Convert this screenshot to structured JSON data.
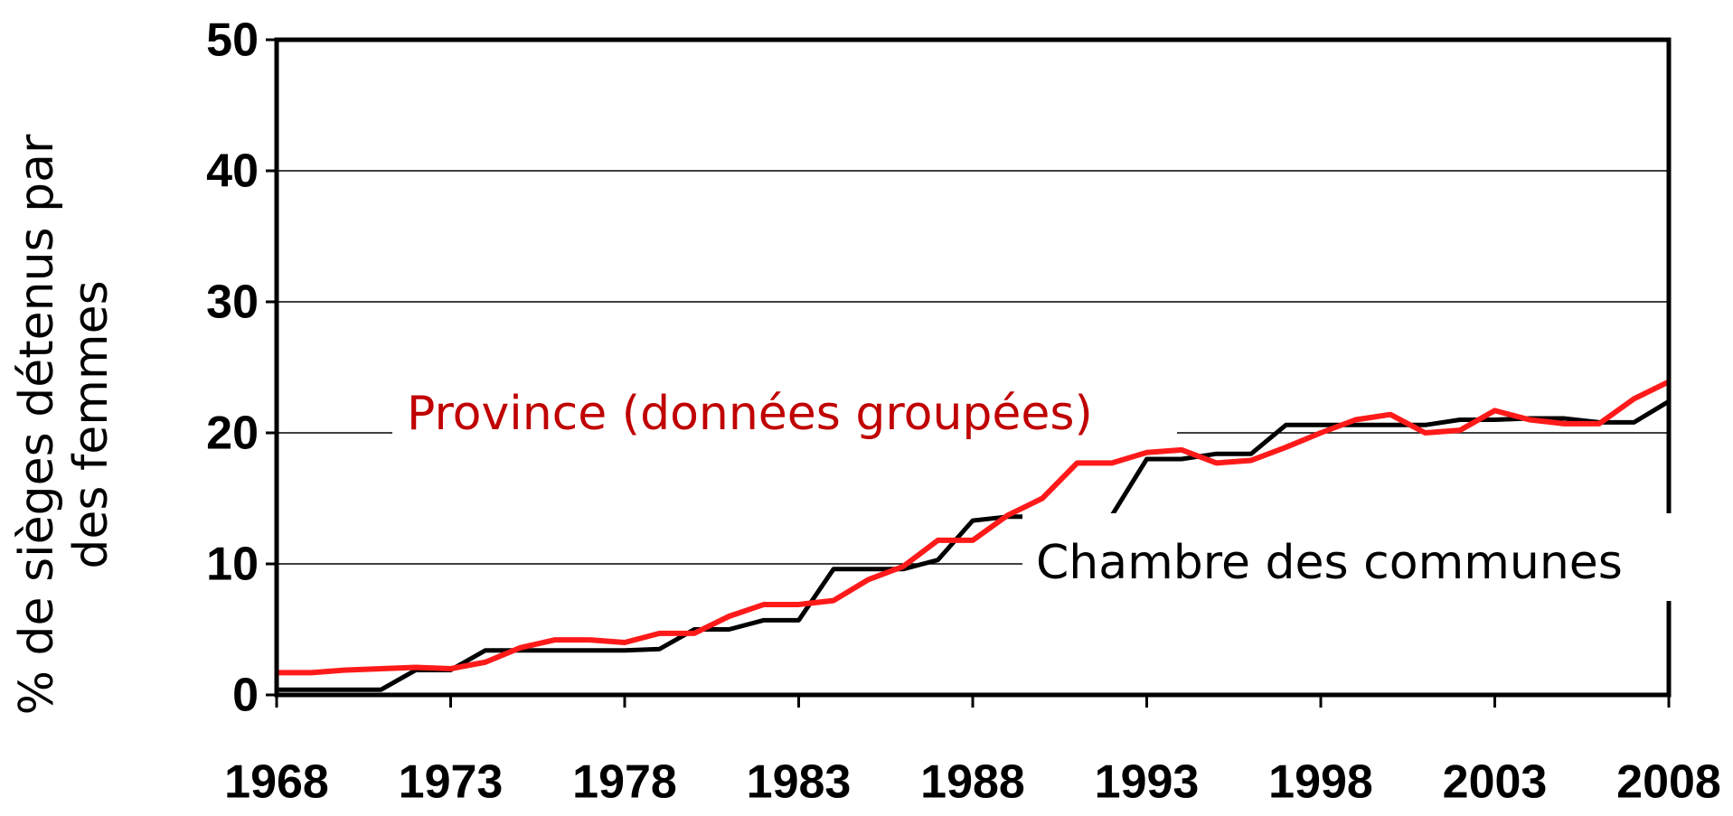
{
  "chart_data": {
    "type": "line",
    "y_label": [
      "% de sièges détenus par",
      "des femmes"
    ],
    "x": [
      1968,
      1969,
      1970,
      1971,
      1972,
      1973,
      1974,
      1975,
      1976,
      1977,
      1978,
      1979,
      1980,
      1981,
      1982,
      1983,
      1984,
      1985,
      1986,
      1987,
      1988,
      1989,
      1990,
      1991,
      1992,
      1993,
      1994,
      1995,
      1996,
      1997,
      1998,
      1999,
      2000,
      2001,
      2002,
      2003,
      2004,
      2005,
      2006,
      2007,
      2008
    ],
    "series": [
      {
        "name": "Chambre des communes",
        "color": "#000000",
        "values": [
          0.4,
          0.4,
          0.4,
          0.4,
          1.9,
          1.9,
          3.4,
          3.4,
          3.4,
          3.4,
          3.4,
          3.5,
          5.0,
          5.0,
          5.7,
          5.7,
          9.6,
          9.6,
          9.6,
          10.3,
          13.3,
          13.6,
          13.6,
          13.6,
          13.7,
          18.0,
          18.0,
          18.4,
          18.4,
          20.6,
          20.6,
          20.6,
          20.6,
          20.6,
          21.0,
          21.0,
          21.1,
          21.1,
          20.8,
          20.8,
          22.4
        ]
      },
      {
        "name": "Province (données groupées)",
        "color": "#ff1a1a",
        "values": [
          1.7,
          1.7,
          1.9,
          2.0,
          2.1,
          2.0,
          2.5,
          3.6,
          4.2,
          4.2,
          4.0,
          4.7,
          4.7,
          6.0,
          6.9,
          6.9,
          7.2,
          8.8,
          9.8,
          11.8,
          11.8,
          13.7,
          15.0,
          17.7,
          17.7,
          18.5,
          18.7,
          17.7,
          17.9,
          18.9,
          20.0,
          21.0,
          21.4,
          20.0,
          20.2,
          21.7,
          21.0,
          20.7,
          20.7,
          22.6,
          23.9
        ]
      }
    ],
    "xlim": [
      1968,
      2008
    ],
    "xticks": [
      1968,
      1973,
      1978,
      1983,
      1988,
      1993,
      1998,
      2003,
      2008
    ],
    "ylim": [
      0,
      50
    ],
    "yticks": [
      0,
      10,
      20,
      30,
      40,
      50
    ],
    "grid": true
  }
}
